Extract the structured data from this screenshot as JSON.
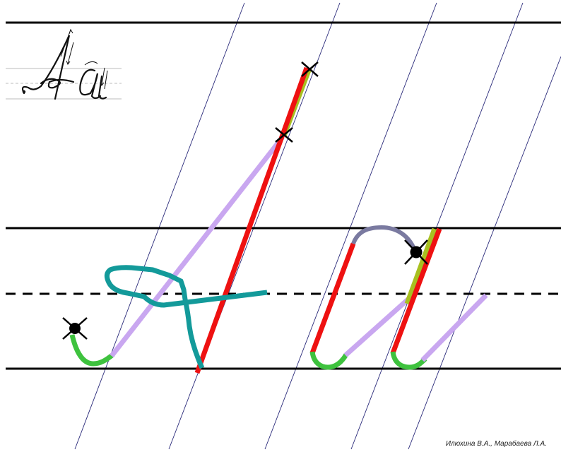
{
  "credit": "Илюхина В.А., Марабаева Л.А.",
  "colors": {
    "line": "#000000",
    "slant": "#2a2a7a",
    "red": "#ee1111",
    "lilac": "#c9a7f0",
    "green": "#3ec23e",
    "teal": "#139a9a",
    "olive": "#a8c020",
    "arc": "#7a7aa0"
  },
  "icons": [
    "start-cross-icon",
    "start-dot-icon"
  ]
}
